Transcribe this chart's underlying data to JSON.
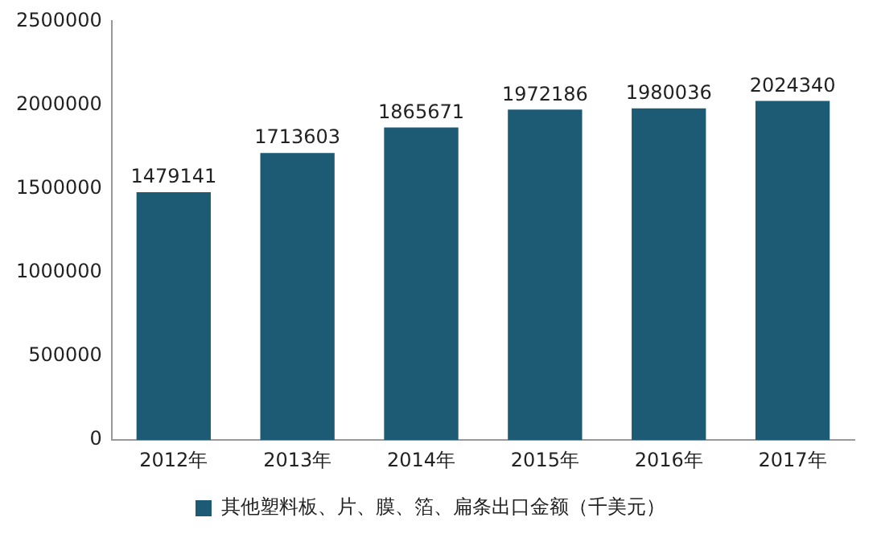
{
  "chart_data": {
    "type": "bar",
    "categories": [
      "2012年",
      "2013年",
      "2014年",
      "2015年",
      "2016年",
      "2017年"
    ],
    "series": [
      {
        "name": "其他塑料板、片、膜、箔、扁条出口金额（千美元）",
        "color": "#1d5b75",
        "values": [
          1479141,
          1713603,
          1865671,
          1972186,
          1980036,
          2024340
        ]
      }
    ],
    "ylim": [
      0,
      2500000
    ],
    "yticks": [
      0,
      500000,
      1000000,
      1500000,
      2000000,
      2500000
    ],
    "data_labels": true,
    "legend": "bottom",
    "grid": false
  }
}
